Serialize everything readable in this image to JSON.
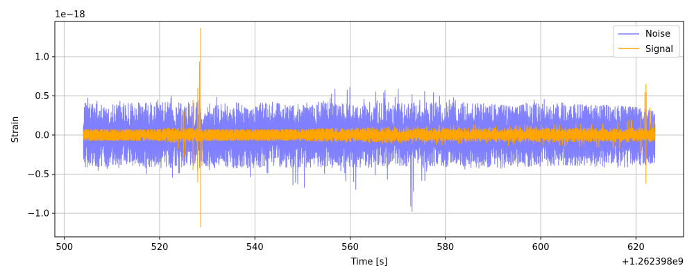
{
  "chart_data": {
    "type": "line",
    "title": "",
    "xlabel": "Time [s]",
    "ylabel": "Strain",
    "x_offset_label": "+1.262398e9",
    "y_scale_label": "1e−18",
    "xlim": [
      498,
      630
    ],
    "ylim": [
      -1.3,
      1.45
    ],
    "x_ticks": [
      500,
      520,
      540,
      560,
      580,
      600,
      620
    ],
    "x_tick_labels": [
      "500",
      "520",
      "540",
      "560",
      "580",
      "600",
      "620"
    ],
    "y_ticks": [
      -1.0,
      -0.5,
      0.0,
      0.5,
      1.0
    ],
    "y_tick_labels": [
      "−1.0",
      "−0.5",
      "0.0",
      "0.5",
      "1.0"
    ],
    "grid": true,
    "legend": {
      "placement": "top-right",
      "entries": [
        "Noise",
        "Signal"
      ]
    },
    "series": [
      {
        "name": "Noise",
        "color": "#7f7fff",
        "x_range": [
          504,
          624
        ],
        "typical_amplitude": 0.28,
        "envelope": [
          {
            "x": 504,
            "upper": 0.35,
            "lower": -0.4
          },
          {
            "x": 505,
            "upper": 0.55,
            "lower": -0.5
          },
          {
            "x": 510,
            "upper": 0.48,
            "lower": -0.45
          },
          {
            "x": 515,
            "upper": 0.4,
            "lower": -0.38
          },
          {
            "x": 520,
            "upper": 0.58,
            "lower": -0.68
          },
          {
            "x": 525,
            "upper": 0.42,
            "lower": -0.45
          },
          {
            "x": 530,
            "upper": 0.5,
            "lower": -0.45
          },
          {
            "x": 535,
            "upper": 0.48,
            "lower": -0.4
          },
          {
            "x": 539,
            "upper": 0.3,
            "lower": -0.6
          },
          {
            "x": 542,
            "upper": 0.45,
            "lower": -0.52
          },
          {
            "x": 545,
            "upper": 0.4,
            "lower": -0.6
          },
          {
            "x": 550,
            "upper": 0.4,
            "lower": -0.7
          },
          {
            "x": 555,
            "upper": 0.55,
            "lower": -0.55
          },
          {
            "x": 559,
            "upper": 0.7,
            "lower": -0.58
          },
          {
            "x": 561,
            "upper": 0.55,
            "lower": -0.75
          },
          {
            "x": 565,
            "upper": 0.55,
            "lower": -0.65
          },
          {
            "x": 570,
            "upper": 0.65,
            "lower": -0.6
          },
          {
            "x": 573,
            "upper": 0.52,
            "lower": -0.98
          },
          {
            "x": 575,
            "upper": 0.6,
            "lower": -0.65
          },
          {
            "x": 578,
            "upper": 0.58,
            "lower": -0.5
          },
          {
            "x": 585,
            "upper": 0.42,
            "lower": -0.45
          },
          {
            "x": 590,
            "upper": 0.4,
            "lower": -0.45
          },
          {
            "x": 595,
            "upper": 0.35,
            "lower": -0.4
          },
          {
            "x": 600,
            "upper": 0.5,
            "lower": -0.4
          },
          {
            "x": 605,
            "upper": 0.4,
            "lower": -0.38
          },
          {
            "x": 610,
            "upper": 0.38,
            "lower": -0.4
          },
          {
            "x": 615,
            "upper": 0.38,
            "lower": -0.42
          },
          {
            "x": 620,
            "upper": 0.35,
            "lower": -0.4
          },
          {
            "x": 624,
            "upper": 0.3,
            "lower": -0.35
          }
        ]
      },
      {
        "name": "Signal",
        "color": "#ffa500",
        "x_range": [
          504,
          624
        ],
        "typical_amplitude": 0.06,
        "envelope": [
          {
            "x": 504,
            "upper": 0.07,
            "lower": -0.07
          },
          {
            "x": 520,
            "upper": 0.07,
            "lower": -0.07
          },
          {
            "x": 523,
            "upper": 0.12,
            "lower": -0.12
          },
          {
            "x": 525,
            "upper": 0.3,
            "lower": -0.3
          },
          {
            "x": 527,
            "upper": 0.45,
            "lower": -0.45
          },
          {
            "x": 528,
            "upper": 0.6,
            "lower": -0.6
          },
          {
            "x": 528.6,
            "upper": 1.37,
            "lower": -1.18
          },
          {
            "x": 529,
            "upper": 0.07,
            "lower": -0.07
          },
          {
            "x": 550,
            "upper": 0.07,
            "lower": -0.07
          },
          {
            "x": 560,
            "upper": 0.1,
            "lower": -0.1
          },
          {
            "x": 580,
            "upper": 0.13,
            "lower": -0.13
          },
          {
            "x": 600,
            "upper": 0.14,
            "lower": -0.14
          },
          {
            "x": 615,
            "upper": 0.18,
            "lower": -0.18
          },
          {
            "x": 621,
            "upper": 0.24,
            "lower": -0.24
          },
          {
            "x": 622.1,
            "upper": 0.65,
            "lower": -0.62
          },
          {
            "x": 624,
            "upper": 0.1,
            "lower": -0.1
          }
        ]
      }
    ]
  }
}
